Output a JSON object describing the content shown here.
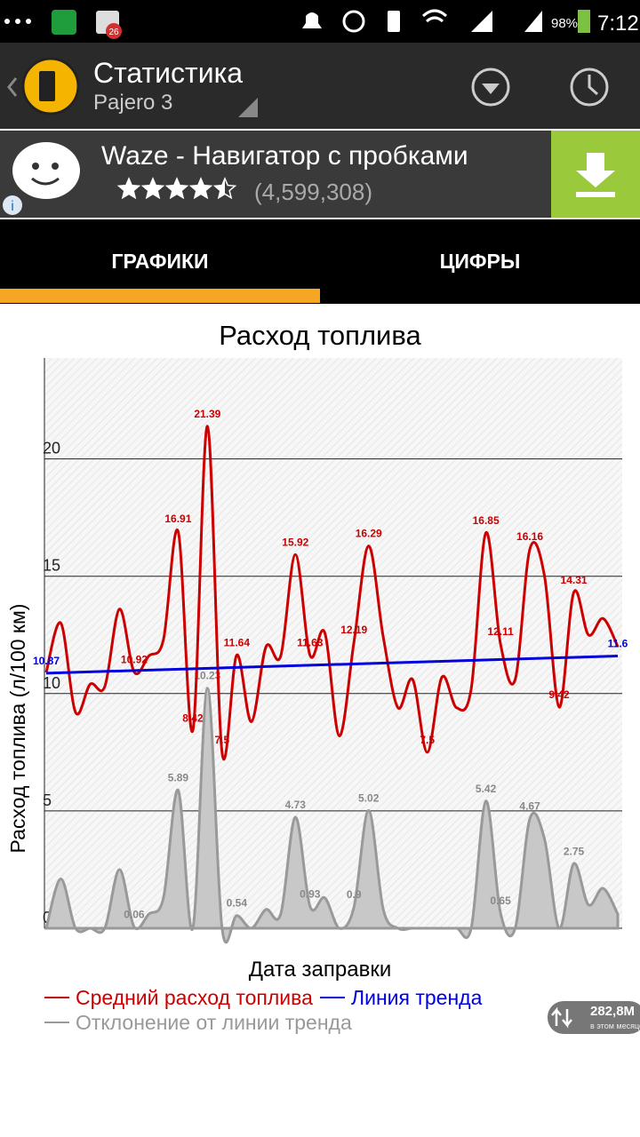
{
  "status_bar": {
    "battery": "98%",
    "time": "7:12"
  },
  "notification_badge": "26",
  "action_bar": {
    "title": "Статистика",
    "subtitle": "Pajero 3"
  },
  "ad": {
    "title": "Waze - Навигатор с пробками",
    "rating": 4.5,
    "rating_count": "(4,599,308)"
  },
  "tabs": [
    "ГРАФИКИ",
    "ЦИФРЫ"
  ],
  "chart_data": {
    "type": "line",
    "title": "Расход топлива",
    "x_label": "Дата заправки",
    "y_label": "Расход топлива (л/100 км)",
    "categories": [
      null,
      null,
      null,
      null,
      null,
      null,
      null,
      null,
      null,
      null,
      null,
      null,
      null,
      null,
      null,
      null,
      null,
      null,
      null,
      null,
      null,
      null,
      null,
      null,
      null,
      null,
      null,
      null,
      null,
      null,
      null,
      null,
      null,
      null,
      null,
      null,
      null,
      null,
      null,
      null
    ],
    "series": [
      {
        "name": "Средний расход топлива",
        "color": "#cc0000",
        "values": [
          10.9,
          13.0,
          9.2,
          10.4,
          10.3,
          13.6,
          10.92,
          11.6,
          12.3,
          16.91,
          8.42,
          21.39,
          7.5,
          11.64,
          8.8,
          12.0,
          11.6,
          15.92,
          11.63,
          12.6,
          8.2,
          12.19,
          16.29,
          12.4,
          9.4,
          10.6,
          7.5,
          10.7,
          9.4,
          10.2,
          16.85,
          12.11,
          10.6,
          16.16,
          15.0,
          9.42,
          14.31,
          12.5,
          13.2,
          12.0
        ],
        "value_labels": [
          null,
          null,
          null,
          null,
          null,
          null,
          "10.92",
          null,
          null,
          "16.91",
          "8.42",
          "21.39",
          "7.5",
          "11.64",
          null,
          null,
          null,
          "15.92",
          "11.63",
          null,
          null,
          "12.19",
          "16.29",
          null,
          null,
          null,
          "7.5",
          null,
          null,
          null,
          "16.85",
          "12.11",
          null,
          "16.16",
          null,
          "9.42",
          "14.31",
          null,
          null,
          null
        ]
      },
      {
        "name": "Линия тренда",
        "color": "#0000dd",
        "x": [
          0,
          39
        ],
        "values": [
          10.87,
          11.6
        ],
        "value_labels": [
          "10.87",
          "11.6"
        ]
      },
      {
        "name": "Отклонение от линии тренда",
        "color": "#999999",
        "fill": "#c8c8c8",
        "values": [
          0,
          2.1,
          0,
          0,
          0,
          2.5,
          0.06,
          0.6,
          1.3,
          5.89,
          0,
          10.23,
          0,
          0.54,
          0,
          0.8,
          0.6,
          4.73,
          0.93,
          1.3,
          0,
          0.9,
          5.02,
          0.8,
          0,
          0,
          0,
          0,
          0,
          0,
          5.42,
          0.65,
          0,
          4.67,
          3.8,
          0,
          2.75,
          1.0,
          1.7,
          0.6
        ],
        "value_labels": [
          null,
          null,
          null,
          null,
          null,
          null,
          "0.06",
          null,
          null,
          "5.89",
          null,
          "10.23",
          null,
          "0.54",
          null,
          null,
          null,
          "4.73",
          "0.93",
          null,
          null,
          "0.9",
          "5.02",
          null,
          null,
          null,
          null,
          null,
          null,
          null,
          "5.42",
          "0.65",
          null,
          "4.67",
          null,
          null,
          "2.75",
          null,
          null,
          null
        ]
      }
    ],
    "ylim": [
      0,
      24.3
    ],
    "yticks": [
      0,
      5,
      10,
      15,
      20
    ],
    "grid": true
  },
  "data_widget": {
    "amount": "282,8M",
    "caption": "в этом месяце"
  }
}
